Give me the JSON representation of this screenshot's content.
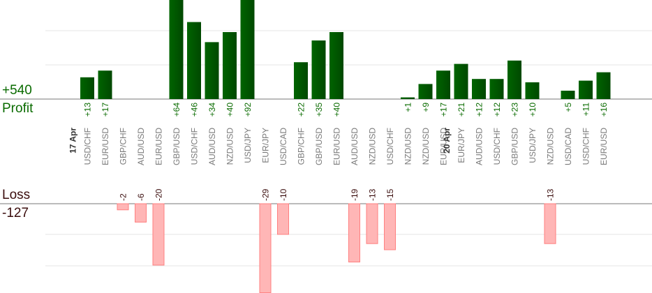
{
  "summary": {
    "profit_total": "+540",
    "profit_label": "Profit",
    "loss_label": "Loss",
    "loss_total": "-127"
  },
  "chart_data": {
    "type": "bar",
    "title": "",
    "xlabel": "",
    "ylabel": "",
    "grid": true,
    "colors": {
      "profit": "#006400",
      "loss": "#ffb6b6",
      "loss_edge": "#ff8080",
      "profit_text": "#0a6b00",
      "loss_text": "#3a0c0c"
    },
    "date_labels": [
      {
        "label": "17 Apr",
        "before_index": 0
      },
      {
        "label": "20 Apr",
        "before_index": 21
      }
    ],
    "categories": [
      "USD/CHF",
      "EUR/USD",
      "GBP/CHF",
      "AUD/USD",
      "EUR/USD",
      "GBP/USD",
      "USD/CHF",
      "AUD/USD",
      "NZD/USD",
      "USD/JPY",
      "EUR/JPY",
      "USD/CAD",
      "GBP/CHF",
      "GBP/USD",
      "EUR/USD",
      "AUD/USD",
      "NZD/USD",
      "USD/CHF",
      "NZD/USD",
      "NZD/USD",
      "EUR/USD",
      "EUR/JPY",
      "AUD/USD",
      "USD/CHF",
      "GBP/USD",
      "USD/JPY",
      "NZD/USD",
      "USD/CAD",
      "USD/CHF",
      "EUR/USD"
    ],
    "values": [
      13,
      17,
      -2,
      -6,
      -20,
      64,
      46,
      34,
      40,
      92,
      -29,
      -10,
      22,
      35,
      40,
      -19,
      -13,
      -15,
      1,
      9,
      17,
      21,
      12,
      12,
      23,
      10,
      -13,
      5,
      11,
      16
    ],
    "value_labels": [
      "+13",
      "+17",
      "-2",
      "-6",
      "-20",
      "+64",
      "+46",
      "+34",
      "+40",
      "+92",
      "-29",
      "-10",
      "+22",
      "+35",
      "+40",
      "-19",
      "-13",
      "-15",
      "+1",
      "+9",
      "+17",
      "+21",
      "+12",
      "+12",
      "+23",
      "+10",
      "-13",
      "+5",
      "+11",
      "+16"
    ]
  }
}
